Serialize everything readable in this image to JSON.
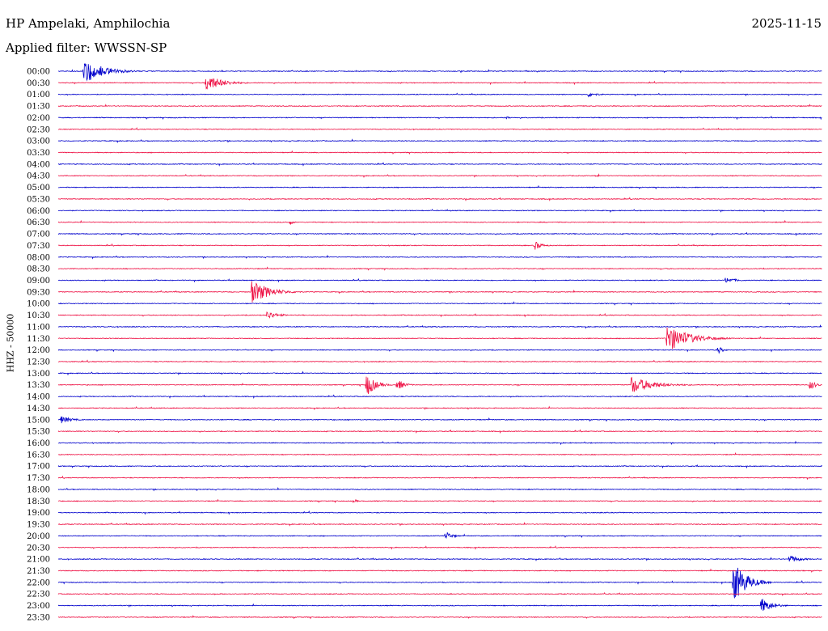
{
  "header": {
    "station": "HP Ampelaki, Amphilochia",
    "date": "2025-11-15",
    "filter_label": "Applied filter: WWSSN-SP"
  },
  "chart_data": {
    "type": "helicorder",
    "title": "HP Ampelaki, Amphilochia",
    "date": "2025-11-15",
    "filter": "WWSSN-SP",
    "ylabel": "HHZ - 50000",
    "row_colors": [
      "#0000cc",
      "#ee1144"
    ],
    "row_labels": [
      "00:00",
      "00:30",
      "01:00",
      "01:30",
      "02:00",
      "02:30",
      "03:00",
      "03:30",
      "04:00",
      "04:30",
      "05:00",
      "05:30",
      "06:00",
      "06:30",
      "07:00",
      "07:30",
      "08:00",
      "08:30",
      "09:00",
      "09:30",
      "10:00",
      "10:30",
      "11:00",
      "11:30",
      "12:00",
      "12:30",
      "13:00",
      "13:30",
      "14:00",
      "14:30",
      "15:00",
      "15:30",
      "16:00",
      "16:30",
      "17:00",
      "17:30",
      "18:00",
      "18:30",
      "19:00",
      "19:30",
      "20:00",
      "20:30",
      "21:00",
      "21:30",
      "22:00",
      "22:30",
      "23:00",
      "23:30"
    ],
    "x_minutes_per_row": 30,
    "events": [
      {
        "row": 0,
        "minute": 1.0,
        "amp": 3.2,
        "dur": 2.2
      },
      {
        "row": 1,
        "minute": 5.8,
        "amp": 2.2,
        "dur": 1.8
      },
      {
        "row": 2,
        "minute": 20.8,
        "amp": 0.6,
        "dur": 1.2
      },
      {
        "row": 4,
        "minute": 17.6,
        "amp": 0.5,
        "dur": 0.4
      },
      {
        "row": 9,
        "minute": 21.1,
        "amp": 0.5,
        "dur": 0.4
      },
      {
        "row": 13,
        "minute": 9.1,
        "amp": 0.7,
        "dur": 0.4
      },
      {
        "row": 15,
        "minute": 18.7,
        "amp": 1.2,
        "dur": 0.8
      },
      {
        "row": 18,
        "minute": 26.2,
        "amp": 0.8,
        "dur": 1.2
      },
      {
        "row": 19,
        "minute": 7.6,
        "amp": 3.0,
        "dur": 2.0
      },
      {
        "row": 21,
        "minute": 8.2,
        "amp": 1.1,
        "dur": 1.2
      },
      {
        "row": 23,
        "minute": 23.9,
        "amp": 3.5,
        "dur": 2.5
      },
      {
        "row": 24,
        "minute": 25.9,
        "amp": 1.0,
        "dur": 0.6
      },
      {
        "row": 27,
        "minute": 12.1,
        "amp": 3.0,
        "dur": 1.0
      },
      {
        "row": 27,
        "minute": 13.3,
        "amp": 1.5,
        "dur": 0.8
      },
      {
        "row": 27,
        "minute": 22.5,
        "amp": 2.2,
        "dur": 2.5
      },
      {
        "row": 27,
        "minute": 29.5,
        "amp": 1.2,
        "dur": 0.8
      },
      {
        "row": 30,
        "minute": 0.1,
        "amp": 1.0,
        "dur": 1.2
      },
      {
        "row": 37,
        "minute": 11.6,
        "amp": 0.6,
        "dur": 0.4
      },
      {
        "row": 40,
        "minute": 15.2,
        "amp": 1.2,
        "dur": 0.8
      },
      {
        "row": 42,
        "minute": 28.7,
        "amp": 1.0,
        "dur": 1.3
      },
      {
        "row": 44,
        "minute": 26.5,
        "amp": 5.5,
        "dur": 1.5
      },
      {
        "row": 46,
        "minute": 27.6,
        "amp": 2.0,
        "dur": 1.2
      }
    ]
  }
}
